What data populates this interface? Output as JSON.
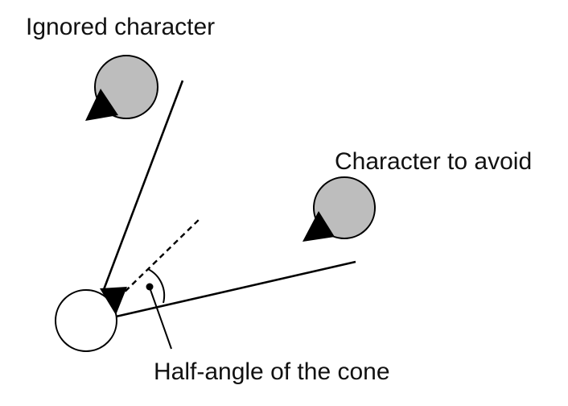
{
  "labels": {
    "ignored": "Ignored character",
    "avoid": "Character to avoid",
    "half_angle": "Half-angle of the cone"
  },
  "colors": {
    "stroke": "#000000",
    "other_character_fill": "#bdbdbd",
    "self_character_fill": "#ffffff",
    "text": "#111111"
  }
}
